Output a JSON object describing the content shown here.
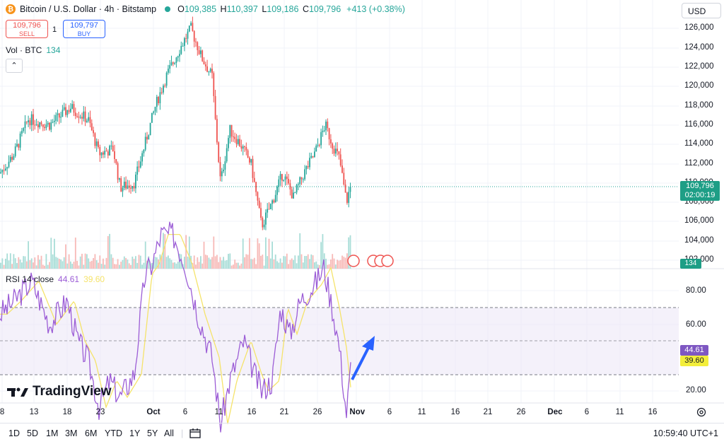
{
  "header": {
    "symbol": "Bitcoin / U.S. Dollar · 4h · Bitstamp",
    "coin_icon": "bitcoin-icon",
    "open_label": "O",
    "open": "109,385",
    "high_label": "H",
    "high": "110,397",
    "low_label": "L",
    "low": "109,186",
    "close_label": "C",
    "close": "109,796",
    "change": "+413 (+0.38%)"
  },
  "trade": {
    "sell_price": "109,796",
    "sell_label": "SELL",
    "quantity": "1",
    "buy_price": "109,797",
    "buy_label": "BUY"
  },
  "volume": {
    "label": "Vol · BTC",
    "value": "134"
  },
  "currency": "USD",
  "price_axis": [
    "126,000",
    "124,000",
    "122,000",
    "120,000",
    "118,000",
    "116,000",
    "114,000",
    "112,000",
    "110,000",
    "108,000",
    "106,000",
    "104,000",
    "102,000"
  ],
  "price_tag": {
    "price": "109,796",
    "countdown": "02:00:19"
  },
  "volume_tag": "134",
  "rsi": {
    "legend": "RSI 14 close",
    "rsi_value": "44.61",
    "ma_value": "39.60",
    "axis": [
      "80.00",
      "60.00",
      "20.00"
    ]
  },
  "time_axis": [
    "8",
    "13",
    "18",
    "23",
    "Oct",
    "6",
    "11",
    "16",
    "21",
    "26",
    "Nov",
    "6",
    "11",
    "16",
    "21",
    "26",
    "Dec",
    "6",
    "11",
    "16"
  ],
  "logo": "TradingView",
  "toolbar": {
    "ranges": [
      "1D",
      "5D",
      "1M",
      "3M",
      "6M",
      "YTD",
      "1Y",
      "5Y",
      "All"
    ],
    "clock": "10:59:40 UTC+1"
  },
  "colors": {
    "up": "#26a69a",
    "down": "#ef5350",
    "rsi": "#9c5dd6",
    "rsi_ma": "#f5e36a",
    "arrow": "#2962ff"
  }
}
